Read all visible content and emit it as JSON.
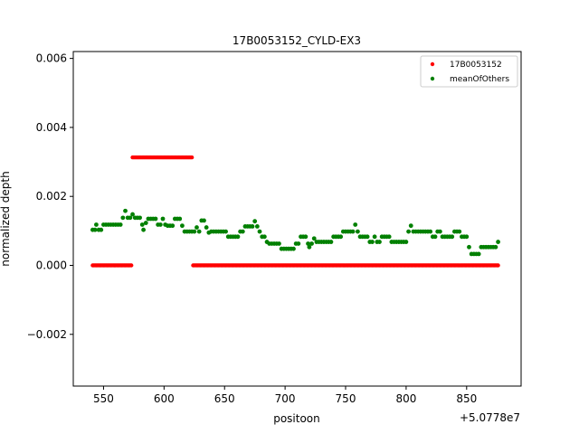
{
  "chart_data": {
    "type": "scatter",
    "title": "17B0053152_CYLD-EX3",
    "xlabel": "positoon",
    "ylabel": "normalized depth",
    "x_offset_label": "+5.0778e7",
    "xlim": [
      525,
      895
    ],
    "ylim": [
      -0.0035,
      0.0062
    ],
    "xticks": [
      550,
      600,
      650,
      700,
      750,
      800,
      850
    ],
    "yticks": [
      -0.002,
      0.0,
      0.002,
      0.004,
      0.006
    ],
    "ytick_labels": [
      "−0.002",
      "0.000",
      "0.002",
      "0.004",
      "0.006"
    ],
    "legend_position": "upper right",
    "series": [
      {
        "name": "17B0053152",
        "color": "#ff0000",
        "segments": [
          {
            "x_start": 541,
            "x_end": 573,
            "y": 0.0
          },
          {
            "x_start": 574,
            "x_end": 623,
            "y": 0.00313
          },
          {
            "x_start": 624,
            "x_end": 876,
            "y": 0.0
          }
        ]
      },
      {
        "name": "meanOfOthers",
        "color": "#008000",
        "points": [
          [
            541,
            0.00103
          ],
          [
            543,
            0.00103
          ],
          [
            544,
            0.00118
          ],
          [
            546,
            0.00103
          ],
          [
            548,
            0.00103
          ],
          [
            550,
            0.00118
          ],
          [
            552,
            0.00118
          ],
          [
            554,
            0.00118
          ],
          [
            556,
            0.00118
          ],
          [
            558,
            0.00118
          ],
          [
            560,
            0.00118
          ],
          [
            562,
            0.00118
          ],
          [
            564,
            0.00118
          ],
          [
            566,
            0.00138
          ],
          [
            568,
            0.00158
          ],
          [
            570,
            0.00138
          ],
          [
            572,
            0.00138
          ],
          [
            574,
            0.00148
          ],
          [
            576,
            0.00138
          ],
          [
            578,
            0.00138
          ],
          [
            580,
            0.00138
          ],
          [
            582,
            0.00118
          ],
          [
            583,
            0.00103
          ],
          [
            585,
            0.00123
          ],
          [
            587,
            0.00135
          ],
          [
            589,
            0.00135
          ],
          [
            591,
            0.00135
          ],
          [
            593,
            0.00135
          ],
          [
            595,
            0.00118
          ],
          [
            597,
            0.00118
          ],
          [
            599,
            0.00135
          ],
          [
            601,
            0.00118
          ],
          [
            603,
            0.00115
          ],
          [
            605,
            0.00115
          ],
          [
            607,
            0.00115
          ],
          [
            609,
            0.00135
          ],
          [
            611,
            0.00135
          ],
          [
            613,
            0.00135
          ],
          [
            615,
            0.00115
          ],
          [
            617,
            0.00098
          ],
          [
            619,
            0.00098
          ],
          [
            621,
            0.00098
          ],
          [
            623,
            0.00098
          ],
          [
            625,
            0.00098
          ],
          [
            627,
            0.0011
          ],
          [
            629,
            0.00098
          ],
          [
            631,
            0.0013
          ],
          [
            633,
            0.0013
          ],
          [
            635,
            0.0011
          ],
          [
            637,
            0.00095
          ],
          [
            639,
            0.00098
          ],
          [
            641,
            0.00098
          ],
          [
            643,
            0.00098
          ],
          [
            645,
            0.00098
          ],
          [
            647,
            0.00098
          ],
          [
            649,
            0.00098
          ],
          [
            651,
            0.00098
          ],
          [
            653,
            0.00083
          ],
          [
            655,
            0.00083
          ],
          [
            657,
            0.00083
          ],
          [
            659,
            0.00083
          ],
          [
            661,
            0.00083
          ],
          [
            663,
            0.00098
          ],
          [
            665,
            0.00098
          ],
          [
            667,
            0.00113
          ],
          [
            669,
            0.00113
          ],
          [
            671,
            0.00113
          ],
          [
            673,
            0.00113
          ],
          [
            675,
            0.00128
          ],
          [
            677,
            0.00113
          ],
          [
            679,
            0.00098
          ],
          [
            681,
            0.00083
          ],
          [
            683,
            0.00083
          ],
          [
            685,
            0.00068
          ],
          [
            687,
            0.00063
          ],
          [
            689,
            0.00063
          ],
          [
            691,
            0.00063
          ],
          [
            693,
            0.00063
          ],
          [
            695,
            0.00063
          ],
          [
            697,
            0.00048
          ],
          [
            699,
            0.00048
          ],
          [
            701,
            0.00048
          ],
          [
            703,
            0.00048
          ],
          [
            705,
            0.00048
          ],
          [
            707,
            0.00048
          ],
          [
            709,
            0.00063
          ],
          [
            711,
            0.00063
          ],
          [
            713,
            0.00083
          ],
          [
            715,
            0.00083
          ],
          [
            717,
            0.00083
          ],
          [
            719,
            0.00063
          ],
          [
            720,
            0.00053
          ],
          [
            722,
            0.00063
          ],
          [
            724,
            0.00078
          ],
          [
            726,
            0.00068
          ],
          [
            728,
            0.00068
          ],
          [
            730,
            0.00068
          ],
          [
            732,
            0.00068
          ],
          [
            734,
            0.00068
          ],
          [
            736,
            0.00068
          ],
          [
            738,
            0.00068
          ],
          [
            740,
            0.00083
          ],
          [
            742,
            0.00083
          ],
          [
            744,
            0.00083
          ],
          [
            746,
            0.00083
          ],
          [
            748,
            0.00098
          ],
          [
            750,
            0.00098
          ],
          [
            752,
            0.00098
          ],
          [
            754,
            0.00098
          ],
          [
            756,
            0.00098
          ],
          [
            758,
            0.00118
          ],
          [
            760,
            0.00098
          ],
          [
            762,
            0.00083
          ],
          [
            764,
            0.00083
          ],
          [
            766,
            0.00083
          ],
          [
            768,
            0.00083
          ],
          [
            770,
            0.00068
          ],
          [
            772,
            0.00068
          ],
          [
            774,
            0.00083
          ],
          [
            776,
            0.00068
          ],
          [
            778,
            0.00068
          ],
          [
            780,
            0.00083
          ],
          [
            782,
            0.00083
          ],
          [
            784,
            0.00083
          ],
          [
            786,
            0.00083
          ],
          [
            788,
            0.00068
          ],
          [
            790,
            0.00068
          ],
          [
            792,
            0.00068
          ],
          [
            794,
            0.00068
          ],
          [
            796,
            0.00068
          ],
          [
            798,
            0.00068
          ],
          [
            800,
            0.00068
          ],
          [
            802,
            0.00098
          ],
          [
            804,
            0.00115
          ],
          [
            806,
            0.00098
          ],
          [
            808,
            0.00098
          ],
          [
            810,
            0.00098
          ],
          [
            812,
            0.00098
          ],
          [
            814,
            0.00098
          ],
          [
            816,
            0.00098
          ],
          [
            818,
            0.00098
          ],
          [
            820,
            0.00098
          ],
          [
            822,
            0.00083
          ],
          [
            824,
            0.00083
          ],
          [
            826,
            0.00098
          ],
          [
            828,
            0.00098
          ],
          [
            830,
            0.00083
          ],
          [
            832,
            0.00083
          ],
          [
            834,
            0.00083
          ],
          [
            836,
            0.00083
          ],
          [
            838,
            0.00083
          ],
          [
            840,
            0.00098
          ],
          [
            842,
            0.00098
          ],
          [
            844,
            0.00098
          ],
          [
            846,
            0.00083
          ],
          [
            848,
            0.00083
          ],
          [
            850,
            0.00083
          ],
          [
            852,
            0.00053
          ],
          [
            854,
            0.00033
          ],
          [
            856,
            0.00033
          ],
          [
            858,
            0.00033
          ],
          [
            860,
            0.00033
          ],
          [
            862,
            0.00053
          ],
          [
            864,
            0.00053
          ],
          [
            866,
            0.00053
          ],
          [
            868,
            0.00053
          ],
          [
            870,
            0.00053
          ],
          [
            872,
            0.00053
          ],
          [
            874,
            0.00053
          ],
          [
            876,
            0.00068
          ]
        ]
      }
    ]
  }
}
